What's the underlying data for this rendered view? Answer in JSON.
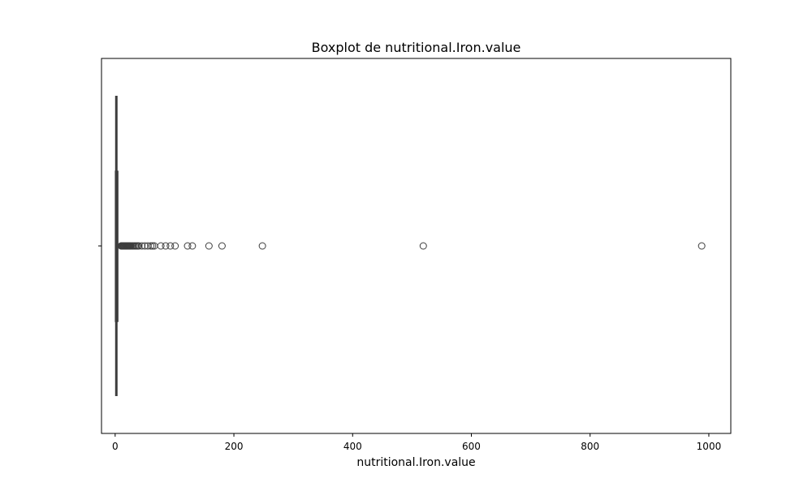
{
  "chart_data": {
    "type": "box",
    "orientation": "horizontal",
    "title": "Boxplot de nutritional.Iron.value",
    "xlabel": "nutritional.Iron.value",
    "ylabel": "",
    "xlim": [
      -23,
      1037
    ],
    "x_ticks": [
      0,
      200,
      400,
      600,
      800,
      1000
    ],
    "x_tick_labels": [
      "0",
      "200",
      "400",
      "600",
      "800",
      "1000"
    ],
    "grid": false,
    "box": {
      "q1": 0.5,
      "median": 2,
      "q3": 4.5,
      "whisker_low": 0,
      "whisker_high": 9
    },
    "outliers": [
      10,
      11,
      12,
      13,
      14,
      15,
      16,
      17,
      18,
      19,
      20,
      21,
      22,
      23,
      24,
      25,
      26,
      28,
      30,
      32,
      34,
      36,
      38,
      40,
      45,
      50,
      55,
      60,
      63,
      66,
      77,
      85,
      93,
      101,
      122,
      130,
      158,
      180,
      248,
      519,
      988
    ],
    "colors": {
      "box_edge": "#3d3d3d",
      "box_fill": "#ffffff",
      "outlier_edge": "#3d3d3d"
    }
  }
}
